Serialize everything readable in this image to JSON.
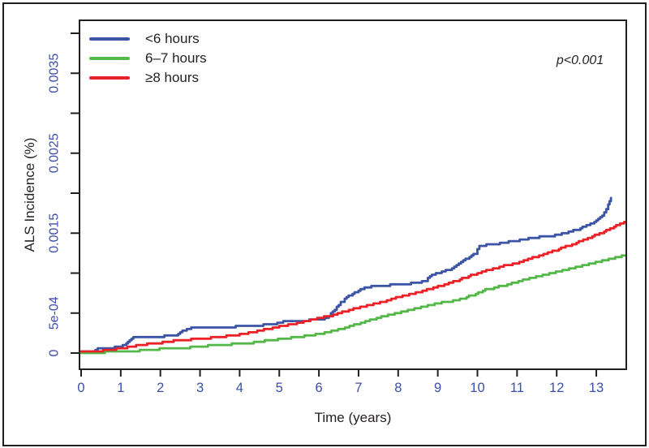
{
  "figure": {
    "p_value": "p<0.001",
    "x_title": "Time (years)",
    "y_title": "ALS Incidence (%)"
  },
  "legend": [
    {
      "label": "<6 hours",
      "color": "#3B54A5"
    },
    {
      "label": "6–7 hours",
      "color": "#53B848"
    },
    {
      "label": "≥8 hours",
      "color": "#EC2027"
    }
  ],
  "chart_data": {
    "type": "line",
    "title": "",
    "xlabel": "Time (years)",
    "ylabel": "ALS Incidence (%)",
    "annotation": "p<0.001",
    "xlim": [
      0,
      13.75
    ],
    "ylim": [
      0,
      0.004
    ],
    "grid": false,
    "legend_position": "top-left",
    "axis_color": "#231f20",
    "tick_label_color": "#3C4EAD",
    "x_ticks": [
      0,
      1,
      2,
      3,
      4,
      5,
      6,
      7,
      8,
      9,
      10,
      11,
      12,
      13
    ],
    "y_ticks": [
      {
        "v": 0,
        "label": "0"
      },
      {
        "v": 0.0005,
        "label": "5e-04"
      },
      {
        "v": 0.001,
        "label": ""
      },
      {
        "v": 0.0015,
        "label": "0.0015"
      },
      {
        "v": 0.002,
        "label": ""
      },
      {
        "v": 0.0025,
        "label": "0.0025"
      },
      {
        "v": 0.003,
        "label": ""
      },
      {
        "v": 0.0035,
        "label": "0.0035"
      },
      {
        "v": 0.004,
        "label": ""
      }
    ],
    "series": [
      {
        "name": "<6 hours",
        "color": "#3B54A5",
        "points": [
          [
            0,
            1e-05
          ],
          [
            0.3,
            2e-05
          ],
          [
            0.42,
            5e-05
          ],
          [
            0.7,
            6e-05
          ],
          [
            0.95,
            8e-05
          ],
          [
            1.1,
            0.0001
          ],
          [
            1.18,
            0.00014
          ],
          [
            1.32,
            0.00019
          ],
          [
            1.8,
            0.0002
          ],
          [
            2.1,
            0.00021
          ],
          [
            2.4,
            0.00022
          ],
          [
            2.5,
            0.00026
          ],
          [
            2.72,
            0.00031
          ],
          [
            3.3,
            0.00032
          ],
          [
            3.9,
            0.00033
          ],
          [
            4.6,
            0.00035
          ],
          [
            4.9,
            0.00037
          ],
          [
            5.15,
            0.0004
          ],
          [
            5.7,
            0.00041
          ],
          [
            6.05,
            0.00042
          ],
          [
            6.2,
            0.00044
          ],
          [
            6.35,
            0.00052
          ],
          [
            6.55,
            0.00063
          ],
          [
            6.75,
            0.00071
          ],
          [
            6.95,
            0.00077
          ],
          [
            7.15,
            0.00082
          ],
          [
            7.5,
            0.00084
          ],
          [
            8.1,
            0.00086
          ],
          [
            8.55,
            0.00088
          ],
          [
            8.7,
            0.00091
          ],
          [
            8.85,
            0.00098
          ],
          [
            9.0,
            0.001
          ],
          [
            9.3,
            0.00105
          ],
          [
            9.7,
            0.00117
          ],
          [
            9.95,
            0.00125
          ],
          [
            10.05,
            0.00134
          ],
          [
            10.4,
            0.00136
          ],
          [
            10.9,
            0.0014
          ],
          [
            11.4,
            0.00144
          ],
          [
            11.9,
            0.00147
          ],
          [
            12.3,
            0.00151
          ],
          [
            12.6,
            0.00156
          ],
          [
            12.85,
            0.00161
          ],
          [
            13.05,
            0.00168
          ],
          [
            13.2,
            0.00175
          ],
          [
            13.3,
            0.00185
          ],
          [
            13.37,
            0.00195
          ]
        ]
      },
      {
        "name": "6–7 hours",
        "color": "#53B848",
        "points": [
          [
            0,
            0.0
          ],
          [
            0.6,
            1e-05
          ],
          [
            1.2,
            2e-05
          ],
          [
            1.7,
            4e-05
          ],
          [
            2.2,
            6e-05
          ],
          [
            2.7,
            7e-05
          ],
          [
            3.2,
            9e-05
          ],
          [
            3.8,
            0.00011
          ],
          [
            4.3,
            0.00013
          ],
          [
            4.8,
            0.00016
          ],
          [
            5.3,
            0.00019
          ],
          [
            5.8,
            0.00022
          ],
          [
            6.2,
            0.00026
          ],
          [
            6.6,
            0.00031
          ],
          [
            7.0,
            0.00037
          ],
          [
            7.4,
            0.00043
          ],
          [
            7.8,
            0.00048
          ],
          [
            8.3,
            0.00054
          ],
          [
            8.8,
            0.0006
          ],
          [
            9.1,
            0.00063
          ],
          [
            9.5,
            0.00066
          ],
          [
            9.9,
            0.00073
          ],
          [
            10.2,
            0.00079
          ],
          [
            10.7,
            0.00085
          ],
          [
            11.2,
            0.00092
          ],
          [
            11.7,
            0.00098
          ],
          [
            12.2,
            0.00104
          ],
          [
            12.7,
            0.0011
          ],
          [
            13.2,
            0.00116
          ],
          [
            13.75,
            0.00123
          ]
        ]
      },
      {
        "name": "≥8 hours",
        "color": "#EC2027",
        "points": [
          [
            0,
            1e-05
          ],
          [
            0.5,
            3e-05
          ],
          [
            1.0,
            6e-05
          ],
          [
            1.5,
            0.0001
          ],
          [
            2.0,
            0.00013
          ],
          [
            2.5,
            0.00016
          ],
          [
            3.0,
            0.00018
          ],
          [
            3.5,
            0.0002
          ],
          [
            4.0,
            0.00023
          ],
          [
            4.5,
            0.00028
          ],
          [
            5.0,
            0.00033
          ],
          [
            5.5,
            0.00038
          ],
          [
            5.9,
            0.00043
          ],
          [
            6.3,
            0.00047
          ],
          [
            6.7,
            0.00053
          ],
          [
            7.1,
            0.00058
          ],
          [
            7.6,
            0.00064
          ],
          [
            8.0,
            0.0007
          ],
          [
            8.5,
            0.00076
          ],
          [
            9.0,
            0.00083
          ],
          [
            9.5,
            0.00091
          ],
          [
            10.0,
            0.001
          ],
          [
            10.5,
            0.00107
          ],
          [
            11.0,
            0.00113
          ],
          [
            11.5,
            0.00121
          ],
          [
            12.0,
            0.00129
          ],
          [
            12.5,
            0.00138
          ],
          [
            12.9,
            0.00146
          ],
          [
            13.2,
            0.00152
          ],
          [
            13.45,
            0.00158
          ],
          [
            13.75,
            0.00165
          ]
        ]
      }
    ]
  }
}
